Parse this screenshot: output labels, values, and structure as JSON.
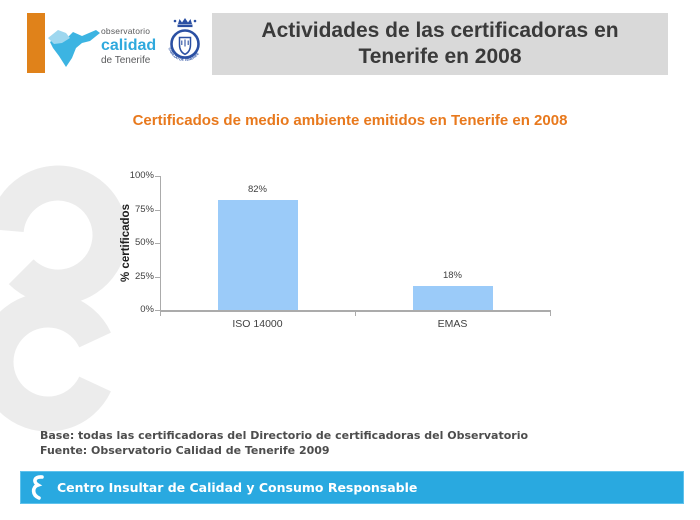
{
  "logo": {
    "observatorio": "observatorio",
    "calidad": "calidad",
    "de_tenerife": "de Tenerife",
    "emblem_text": "CABILDO DE TENERIFE"
  },
  "header": {
    "title": "Actividades de las certificadoras en Tenerife en 2008"
  },
  "subtitle": {
    "text": "Certificados de medio ambiente emitidos en Tenerife en 2008"
  },
  "chart_data": {
    "type": "bar",
    "title": "Certificados de medio ambiente emitidos en Tenerife en 2008",
    "categories": [
      "ISO 14000",
      "EMAS"
    ],
    "values": [
      82,
      18
    ],
    "value_labels": [
      "82%",
      "18%"
    ],
    "xlabel": "",
    "ylabel": "% certificados",
    "ylim": [
      0,
      100
    ],
    "yticks": [
      "0%",
      "25%",
      "50%",
      "75%",
      "100%"
    ],
    "grid": false,
    "legend": "none",
    "bar_color": "#9BCBF9",
    "axis_color": "#ABABAB",
    "tick_label_color": "#404040"
  },
  "notes": {
    "base": "Base: todas las certificadoras del Directorio de certificadoras del Observatorio",
    "fuente": "Fuente: Observatorio Calidad de Tenerife 2009"
  },
  "footer": {
    "text": "Centro Insultar de Calidad y Consumo Responsable"
  },
  "colors": {
    "accent_orange": "#E0821A",
    "subtitle_orange": "#E8791D",
    "header_bg": "#D9D9D9",
    "header_text": "#3A3A3A",
    "footer_bg": "#29A9E0",
    "logo_blue": "#3CB4E2",
    "logo_light_blue": "#9ED7EF",
    "logo_calidad_blue": "#2FA9DD",
    "emblem_blue": "#2B50A3",
    "decor_gray": "#ECECEC",
    "notes_text": "#4D4D4D"
  }
}
